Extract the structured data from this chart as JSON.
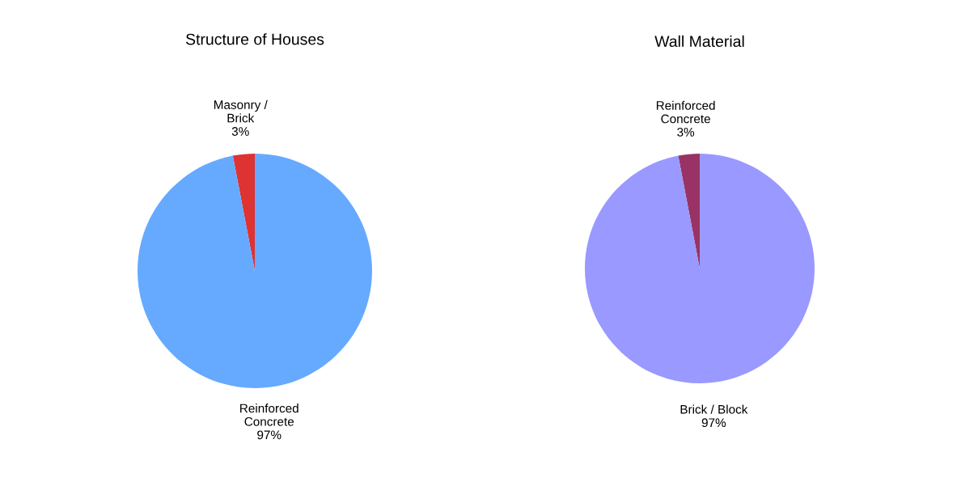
{
  "chart_data": [
    {
      "type": "pie",
      "title": "Structure of Houses",
      "categories": [
        "Masonry /\nBrick",
        "Reinforced\nConcrete"
      ],
      "values": [
        3,
        97
      ],
      "value_labels": [
        "3%",
        "97%"
      ],
      "colors": [
        "#dd3333",
        "#66aaff"
      ]
    },
    {
      "type": "pie",
      "title": "Wall Material",
      "categories": [
        "Reinforced\nConcrete",
        "Brick / Block"
      ],
      "values": [
        3,
        97
      ],
      "value_labels": [
        "3%",
        "97%"
      ],
      "colors": [
        "#993366",
        "#9999ff"
      ]
    }
  ]
}
